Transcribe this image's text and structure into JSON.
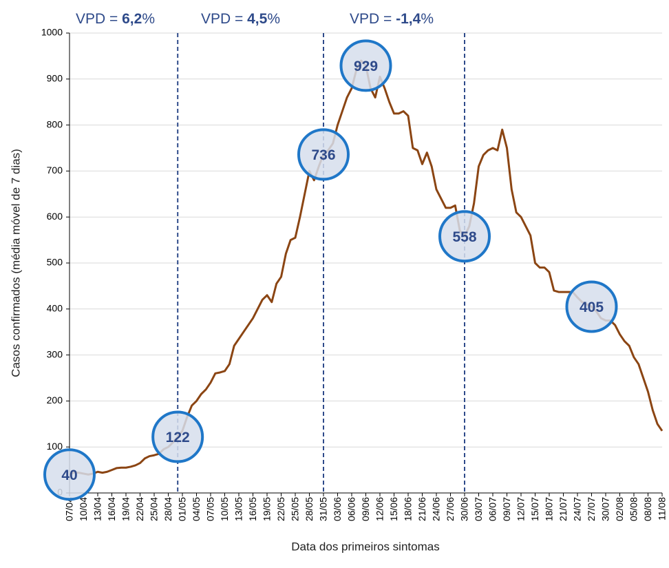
{
  "chart_data": {
    "type": "line",
    "y_label": "Casos confirmados (média móvel de 7 dias)",
    "x_label": "Data dos primeiros sintomas",
    "annotations": [
      [
        "VPD = ",
        "6,2",
        "%"
      ],
      [
        "VPD = ",
        "4,5",
        "%"
      ],
      [
        "VPD = ",
        "-1,4",
        "%"
      ]
    ],
    "color": "#8b4513",
    "ylim": [
      0,
      1000
    ],
    "yticks": [
      0,
      100,
      200,
      300,
      400,
      500,
      600,
      700,
      800,
      900,
      1000
    ],
    "grid": true,
    "categories": [
      "07/04",
      null,
      null,
      "10/04",
      null,
      null,
      "13/04",
      null,
      null,
      "16/04",
      null,
      null,
      "19/04",
      null,
      null,
      "22/04",
      null,
      null,
      "25/04",
      null,
      null,
      "28/04",
      null,
      null,
      "01/05",
      null,
      null,
      "04/05",
      null,
      null,
      "07/05",
      null,
      null,
      "10/05",
      null,
      null,
      "13/05",
      null,
      null,
      "16/05",
      null,
      null,
      "19/05",
      null,
      null,
      "22/05",
      null,
      null,
      "25/05",
      null,
      null,
      "28/05",
      null,
      null,
      "31/05",
      null,
      null,
      "03/06",
      null,
      null,
      "06/06",
      null,
      null,
      "09/06",
      null,
      null,
      "12/06",
      null,
      null,
      "15/06",
      null,
      null,
      "18/06",
      null,
      null,
      "21/06",
      null,
      null,
      "24/06",
      null,
      null,
      "27/06",
      null,
      null,
      "30/06",
      null,
      null,
      "03/07",
      null,
      null,
      "06/07",
      null,
      null,
      "09/07",
      null,
      null,
      "12/07",
      null,
      null,
      "15/07",
      null,
      null,
      "18/07",
      null,
      null,
      "21/07",
      null,
      null,
      "24/07",
      null,
      null,
      "27/07",
      null,
      null,
      "30/07",
      null,
      null,
      "02/08",
      null,
      null,
      "05/08",
      null,
      null,
      "08/08",
      null,
      null,
      "11/08"
    ],
    "values": [
      40,
      45,
      44,
      42,
      40,
      42,
      46,
      44,
      46,
      50,
      54,
      55,
      55,
      57,
      60,
      65,
      75,
      80,
      82,
      85,
      95,
      100,
      110,
      122,
      135,
      165,
      190,
      200,
      215,
      225,
      240,
      260,
      262,
      265,
      280,
      320,
      335,
      350,
      365,
      380,
      400,
      420,
      430,
      415,
      455,
      470,
      520,
      550,
      555,
      600,
      650,
      700,
      680,
      710,
      736,
      745,
      760,
      800,
      830,
      860,
      880,
      920,
      940,
      929,
      880,
      860,
      905,
      880,
      850,
      825,
      825,
      830,
      820,
      750,
      745,
      715,
      740,
      710,
      660,
      640,
      620,
      620,
      625,
      570,
      558,
      580,
      630,
      710,
      735,
      745,
      750,
      745,
      790,
      750,
      660,
      610,
      600,
      580,
      560,
      500,
      490,
      490,
      480,
      440,
      437,
      437,
      437,
      437,
      425,
      415,
      410,
      405,
      395,
      380,
      375,
      375,
      365,
      345,
      330,
      320,
      295,
      280,
      250,
      220,
      180,
      150,
      135
    ],
    "value_labels": [
      "40",
      null,
      null,
      null,
      null,
      null,
      null,
      null,
      null,
      null,
      null,
      null,
      null,
      null,
      null,
      null,
      null,
      null,
      null,
      null,
      null,
      null,
      null,
      "122",
      null,
      null,
      null,
      null,
      null,
      null,
      null,
      null,
      null,
      null,
      null,
      null,
      null,
      null,
      null,
      null,
      null,
      null,
      null,
      null,
      null,
      null,
      null,
      null,
      null,
      null,
      null,
      null,
      null,
      null,
      "736",
      null,
      null,
      null,
      null,
      null,
      null,
      null,
      null,
      "929",
      null,
      null,
      null,
      null,
      null,
      null,
      null,
      null,
      null,
      null,
      null,
      null,
      null,
      null,
      null,
      null,
      null,
      null,
      null,
      null,
      "558",
      null,
      null,
      null,
      null,
      null,
      null,
      null,
      null,
      null,
      null,
      null,
      null,
      null,
      null,
      null,
      null,
      null,
      null,
      null,
      null,
      null,
      null,
      null,
      null,
      null,
      null,
      "405",
      null,
      null,
      null,
      null,
      null,
      null,
      null,
      null,
      null,
      null,
      null,
      null,
      null,
      null,
      null
    ]
  }
}
